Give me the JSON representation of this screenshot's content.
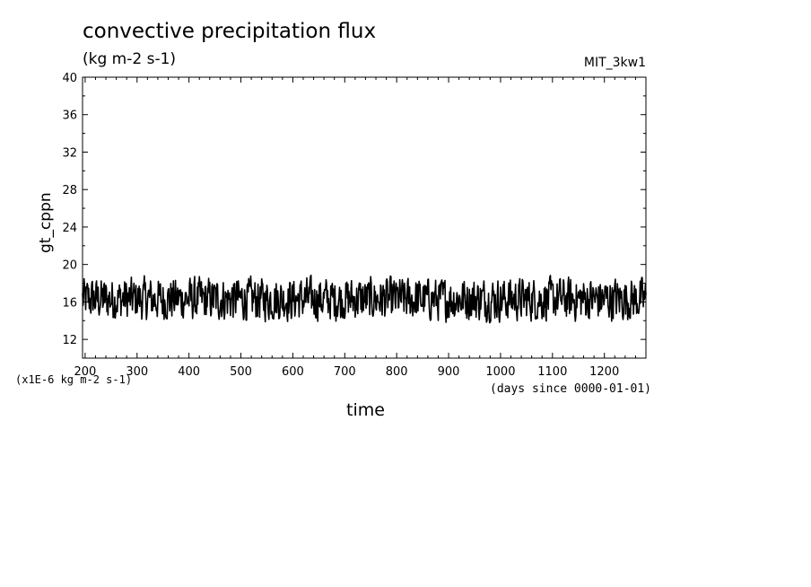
{
  "chart_data": {
    "type": "line",
    "title": "convective precipitation flux",
    "subtitle": "(kg m-2 s-1)",
    "run_label": "MIT_3kw1",
    "scale_note": "(x1E-6 kg m-2 s-1)",
    "xlabel": "time",
    "xunit_note": "(days since 0000-01-01)",
    "ylabel": "gt_cppn",
    "xlim": [
      195,
      1280
    ],
    "ylim": [
      10,
      40
    ],
    "xticks": [
      200,
      300,
      400,
      500,
      600,
      700,
      800,
      900,
      1000,
      1100,
      1200
    ],
    "yticks": [
      12,
      16,
      20,
      24,
      28,
      32,
      36,
      40
    ],
    "grid": false,
    "series": [
      {
        "color": "#000000",
        "x_step": 1,
        "x_start": 195,
        "mean": 16.3,
        "min": 13.1,
        "max": 19.3
      }
    ]
  }
}
